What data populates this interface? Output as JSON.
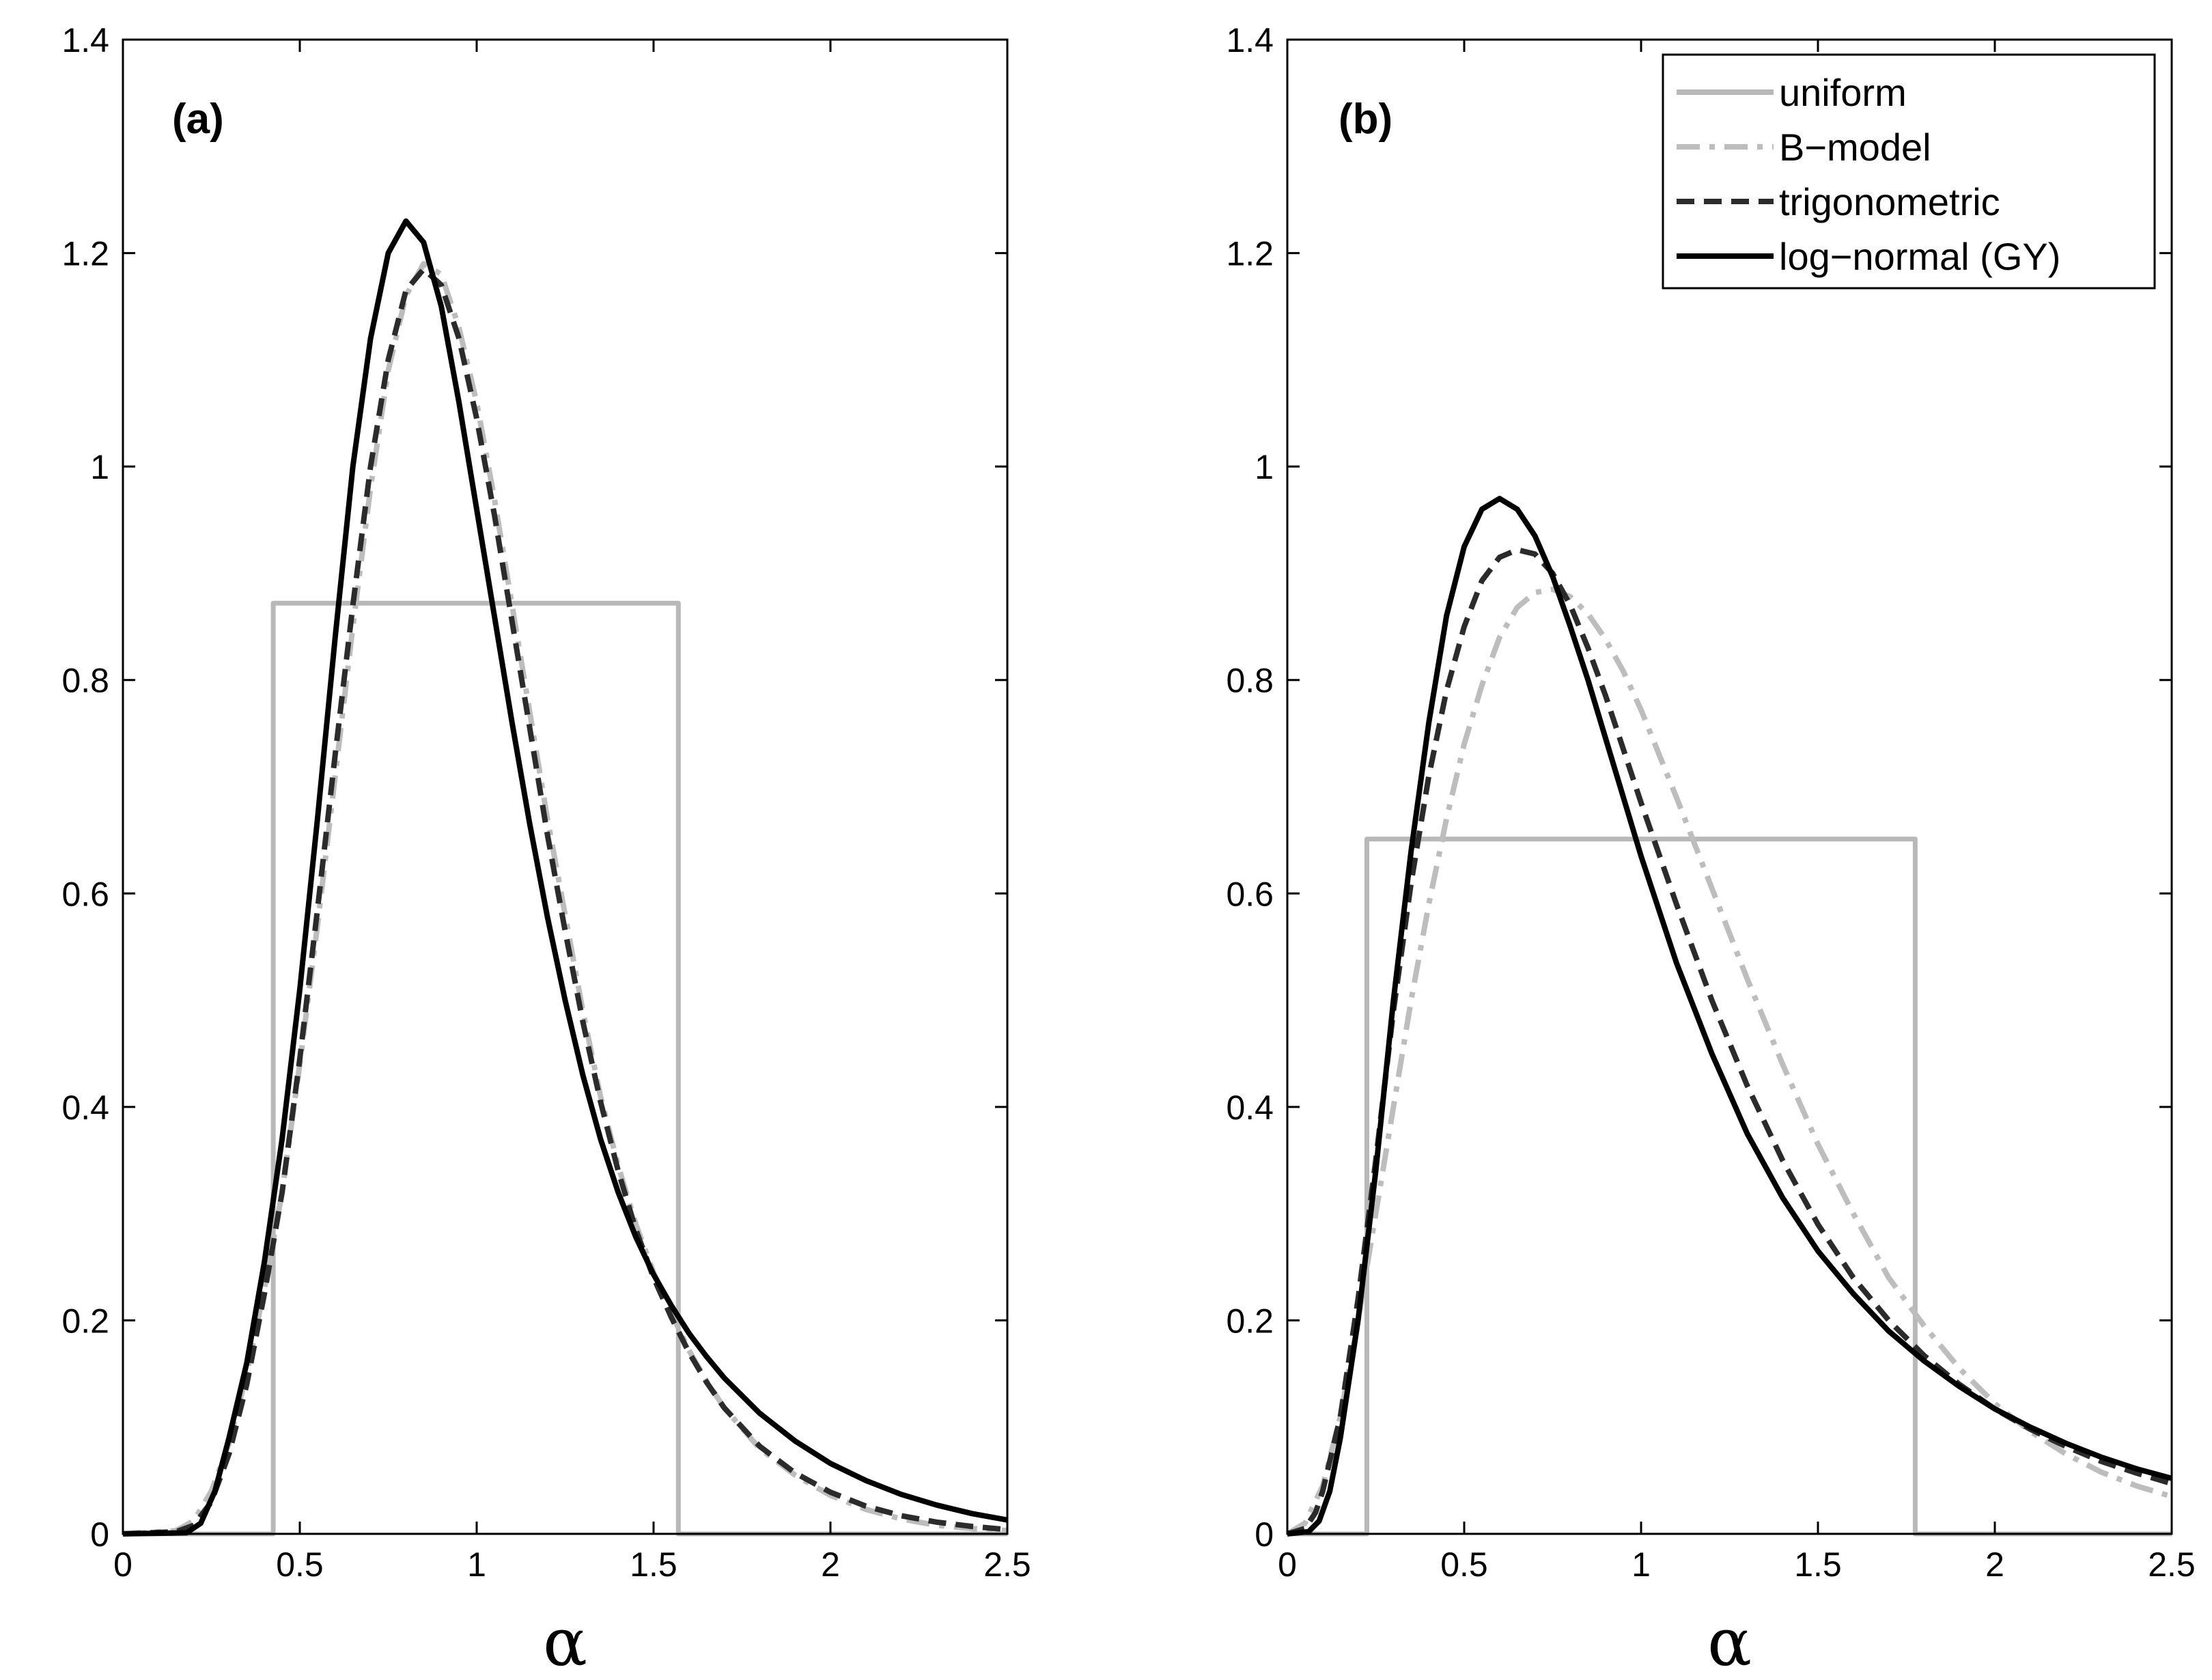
{
  "styles": {
    "uniform": {
      "color": "#b8b8b8",
      "dash": ""
    },
    "bmodel": {
      "color": "#bdbdbd",
      "dash": "34,14,8,14"
    },
    "trig": {
      "color": "#2b2b2b",
      "dash": "26,14"
    },
    "lognormal": {
      "color": "#000000",
      "dash": ""
    }
  },
  "legend": [
    {
      "key": "uniform",
      "label": "uniform"
    },
    {
      "key": "bmodel",
      "label": "B−model"
    },
    {
      "key": "trig",
      "label": "trigonometric"
    },
    {
      "key": "lognormal",
      "label": "log−normal (GY)"
    }
  ],
  "chart_data": [
    {
      "type": "line",
      "panel": "(a)",
      "xlabel": "α",
      "ylabel": "",
      "xlim": [
        0,
        2.5
      ],
      "ylim": [
        0,
        1.4
      ],
      "xticks": [
        0,
        0.5,
        1,
        1.5,
        2,
        2.5
      ],
      "xtick_labels": [
        "0",
        "0.5",
        "1",
        "1.5",
        "2",
        "2.5"
      ],
      "yticks": [
        0,
        0.2,
        0.4,
        0.6,
        0.8,
        1,
        1.2,
        1.4
      ],
      "ytick_labels": [
        "0",
        "0.2",
        "0.4",
        "0.6",
        "0.8",
        "1",
        "1.2",
        "1.4"
      ],
      "series": [
        {
          "name": "uniform",
          "key": "uniform",
          "x": [
            0,
            0.425,
            0.425,
            1.57,
            1.57,
            2.5
          ],
          "y": [
            0,
            0,
            0.872,
            0.872,
            0,
            0
          ]
        },
        {
          "name": "B−model",
          "key": "bmodel",
          "x": [
            0,
            0.15,
            0.2,
            0.25,
            0.3,
            0.35,
            0.4,
            0.45,
            0.5,
            0.55,
            0.6,
            0.65,
            0.7,
            0.75,
            0.8,
            0.85,
            0.9,
            0.95,
            1.0,
            1.05,
            1.1,
            1.15,
            1.2,
            1.25,
            1.3,
            1.35,
            1.4,
            1.45,
            1.5,
            1.55,
            1.6,
            1.65,
            1.7,
            1.8,
            1.9,
            2.0,
            2.1,
            2.2,
            2.3,
            2.4,
            2.5
          ],
          "y": [
            0,
            0.003,
            0.012,
            0.04,
            0.085,
            0.15,
            0.23,
            0.32,
            0.44,
            0.57,
            0.71,
            0.85,
            0.98,
            1.09,
            1.16,
            1.19,
            1.18,
            1.13,
            1.06,
            0.97,
            0.87,
            0.77,
            0.67,
            0.58,
            0.49,
            0.41,
            0.345,
            0.29,
            0.245,
            0.207,
            0.172,
            0.143,
            0.118,
            0.08,
            0.055,
            0.036,
            0.023,
            0.014,
            0.008,
            0.005,
            0.003
          ]
        },
        {
          "name": "trigonometric",
          "key": "trig",
          "x": [
            0,
            0.15,
            0.2,
            0.25,
            0.3,
            0.35,
            0.4,
            0.45,
            0.5,
            0.55,
            0.6,
            0.65,
            0.7,
            0.75,
            0.8,
            0.85,
            0.9,
            0.95,
            1.0,
            1.05,
            1.1,
            1.15,
            1.2,
            1.25,
            1.3,
            1.35,
            1.4,
            1.45,
            1.5,
            1.55,
            1.6,
            1.65,
            1.7,
            1.8,
            1.9,
            2.0,
            2.1,
            2.2,
            2.3,
            2.4,
            2.5
          ],
          "y": [
            0,
            0.002,
            0.008,
            0.03,
            0.075,
            0.14,
            0.225,
            0.32,
            0.445,
            0.585,
            0.73,
            0.87,
            1.0,
            1.1,
            1.165,
            1.185,
            1.17,
            1.12,
            1.045,
            0.955,
            0.855,
            0.755,
            0.655,
            0.565,
            0.48,
            0.405,
            0.34,
            0.285,
            0.24,
            0.203,
            0.17,
            0.142,
            0.118,
            0.082,
            0.057,
            0.039,
            0.026,
            0.017,
            0.011,
            0.007,
            0.004
          ]
        },
        {
          "name": "log−normal (GY)",
          "key": "lognormal",
          "x": [
            0,
            0.18,
            0.22,
            0.26,
            0.3,
            0.35,
            0.4,
            0.45,
            0.5,
            0.55,
            0.6,
            0.65,
            0.7,
            0.75,
            0.8,
            0.85,
            0.9,
            0.95,
            1.0,
            1.05,
            1.1,
            1.15,
            1.2,
            1.25,
            1.3,
            1.35,
            1.4,
            1.45,
            1.5,
            1.55,
            1.6,
            1.65,
            1.7,
            1.8,
            1.9,
            2.0,
            2.1,
            2.2,
            2.3,
            2.4,
            2.5
          ],
          "y": [
            0,
            0.001,
            0.01,
            0.04,
            0.09,
            0.16,
            0.255,
            0.37,
            0.51,
            0.67,
            0.84,
            1.0,
            1.12,
            1.2,
            1.23,
            1.21,
            1.15,
            1.06,
            0.96,
            0.86,
            0.76,
            0.665,
            0.578,
            0.5,
            0.43,
            0.37,
            0.32,
            0.278,
            0.243,
            0.214,
            0.188,
            0.166,
            0.146,
            0.113,
            0.087,
            0.066,
            0.05,
            0.037,
            0.027,
            0.019,
            0.013
          ]
        }
      ]
    },
    {
      "type": "line",
      "panel": "(b)",
      "xlabel": "α",
      "ylabel": "",
      "xlim": [
        0,
        2.5
      ],
      "ylim": [
        0,
        1.4
      ],
      "xticks": [
        0,
        0.5,
        1,
        1.5,
        2,
        2.5
      ],
      "xtick_labels": [
        "0",
        "0.5",
        "1",
        "1.5",
        "2",
        "2.5"
      ],
      "yticks": [
        0,
        0.2,
        0.4,
        0.6,
        0.8,
        1,
        1.2,
        1.4
      ],
      "ytick_labels": [
        "0",
        "0.2",
        "0.4",
        "0.6",
        "0.8",
        "1",
        "1.2",
        "1.4"
      ],
      "series": [
        {
          "name": "uniform",
          "key": "uniform",
          "x": [
            0,
            0.225,
            0.225,
            1.775,
            1.775,
            2.5
          ],
          "y": [
            0,
            0,
            0.651,
            0.651,
            0,
            0
          ]
        },
        {
          "name": "B−model",
          "key": "bmodel",
          "x": [
            0,
            0.05,
            0.1,
            0.15,
            0.2,
            0.25,
            0.3,
            0.35,
            0.4,
            0.45,
            0.5,
            0.55,
            0.6,
            0.65,
            0.7,
            0.75,
            0.8,
            0.85,
            0.9,
            0.95,
            1.0,
            1.1,
            1.2,
            1.3,
            1.4,
            1.5,
            1.6,
            1.7,
            1.8,
            1.9,
            2.0,
            2.1,
            2.2,
            2.3,
            2.4,
            2.5
          ],
          "y": [
            0,
            0.01,
            0.045,
            0.11,
            0.2,
            0.3,
            0.4,
            0.5,
            0.59,
            0.67,
            0.74,
            0.795,
            0.84,
            0.868,
            0.882,
            0.885,
            0.878,
            0.862,
            0.838,
            0.808,
            0.772,
            0.69,
            0.605,
            0.52,
            0.44,
            0.365,
            0.3,
            0.24,
            0.195,
            0.155,
            0.122,
            0.096,
            0.075,
            0.058,
            0.045,
            0.035
          ]
        },
        {
          "name": "trigonometric",
          "key": "trig",
          "x": [
            0,
            0.05,
            0.08,
            0.1,
            0.15,
            0.2,
            0.25,
            0.3,
            0.35,
            0.4,
            0.45,
            0.5,
            0.55,
            0.6,
            0.65,
            0.7,
            0.75,
            0.8,
            0.85,
            0.9,
            0.95,
            1.0,
            1.1,
            1.2,
            1.3,
            1.4,
            1.5,
            1.6,
            1.7,
            1.8,
            1.9,
            2.0,
            2.1,
            2.2,
            2.3,
            2.4,
            2.5
          ],
          "y": [
            0,
            0.005,
            0.02,
            0.04,
            0.11,
            0.22,
            0.35,
            0.49,
            0.61,
            0.71,
            0.79,
            0.85,
            0.893,
            0.915,
            0.922,
            0.918,
            0.9,
            0.87,
            0.83,
            0.785,
            0.735,
            0.685,
            0.59,
            0.5,
            0.42,
            0.35,
            0.29,
            0.24,
            0.2,
            0.167,
            0.14,
            0.117,
            0.098,
            0.082,
            0.068,
            0.057,
            0.047
          ]
        },
        {
          "name": "log−normal (GY)",
          "key": "lognormal",
          "x": [
            0,
            0.06,
            0.09,
            0.12,
            0.15,
            0.2,
            0.25,
            0.3,
            0.35,
            0.4,
            0.45,
            0.5,
            0.55,
            0.6,
            0.65,
            0.7,
            0.75,
            0.8,
            0.85,
            0.9,
            0.95,
            1.0,
            1.1,
            1.2,
            1.3,
            1.4,
            1.5,
            1.6,
            1.7,
            1.8,
            1.9,
            2.0,
            2.1,
            2.2,
            2.3,
            2.4,
            2.5
          ],
          "y": [
            0,
            0.002,
            0.012,
            0.04,
            0.09,
            0.2,
            0.34,
            0.5,
            0.64,
            0.76,
            0.86,
            0.925,
            0.96,
            0.97,
            0.96,
            0.935,
            0.897,
            0.85,
            0.8,
            0.745,
            0.69,
            0.635,
            0.535,
            0.45,
            0.375,
            0.315,
            0.265,
            0.225,
            0.19,
            0.162,
            0.138,
            0.117,
            0.1,
            0.085,
            0.072,
            0.061,
            0.052
          ]
        }
      ]
    }
  ]
}
